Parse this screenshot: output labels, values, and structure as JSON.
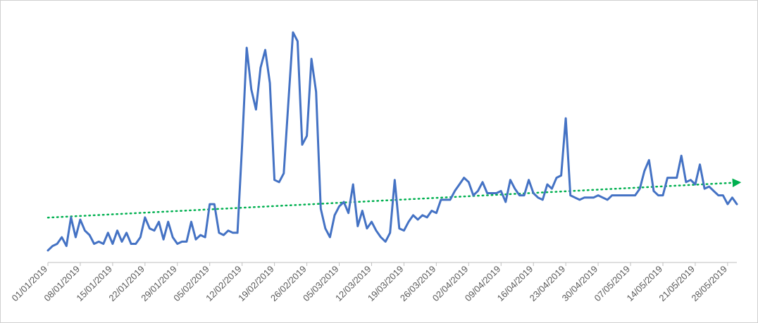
{
  "chart_data": {
    "type": "line",
    "title": "",
    "xlabel": "",
    "ylabel": "",
    "x_tick_labels": [
      "01/01/2019",
      "08/01/2019",
      "15/01/2019",
      "22/01/2019",
      "29/01/2019",
      "05/02/2019",
      "12/02/2019",
      "19/02/2019",
      "26/02/2019",
      "05/03/2019",
      "12/03/2019",
      "19/03/2019",
      "26/03/2019",
      "02/04/2019",
      "09/04/2019",
      "16/04/2019",
      "23/04/2019",
      "30/04/2019",
      "07/05/2019",
      "14/05/2019",
      "21/05/2019",
      "28/05/2019"
    ],
    "x_start": "01/01/2019",
    "x_end": "31/05/2019",
    "y_axis_visible": false,
    "y_range": [
      0,
      100
    ],
    "grid": false,
    "legend": "none",
    "series": [
      {
        "color": "#4472c4",
        "values": [
          1,
          3,
          4,
          7,
          3,
          16,
          7,
          15,
          10,
          8,
          4,
          5,
          4,
          9,
          4,
          10,
          5,
          9,
          4,
          4,
          7,
          16,
          11,
          10,
          14,
          6,
          14,
          7,
          4,
          5,
          5,
          14,
          6,
          8,
          7,
          22,
          22,
          9,
          8,
          10,
          9,
          9,
          49,
          93,
          74,
          65,
          84,
          92,
          77,
          33,
          32,
          36,
          68,
          100,
          96,
          49,
          53,
          88,
          73,
          20,
          11,
          7,
          17,
          21,
          23,
          18,
          31,
          12,
          19,
          11,
          14,
          10,
          7,
          5,
          9,
          33,
          11,
          10,
          14,
          17,
          15,
          17,
          16,
          19,
          18,
          24,
          24,
          24,
          28,
          31,
          34,
          32,
          26,
          28,
          32,
          27,
          27,
          27,
          28,
          23,
          33,
          29,
          26,
          26,
          33,
          27,
          25,
          24,
          31,
          29,
          34,
          35,
          61,
          26,
          25,
          24,
          25,
          25,
          25,
          26,
          25,
          24,
          26,
          26,
          26,
          26,
          26,
          26,
          29,
          37,
          42,
          28,
          26,
          26,
          34,
          34,
          34,
          44,
          32,
          33,
          31,
          40,
          29,
          30,
          28,
          26,
          26,
          22,
          25,
          22
        ],
        "trendline": {
          "type": "linear",
          "color": "#00b050",
          "style": "dotted",
          "start": 15.9,
          "end": 31.8
        }
      }
    ]
  }
}
